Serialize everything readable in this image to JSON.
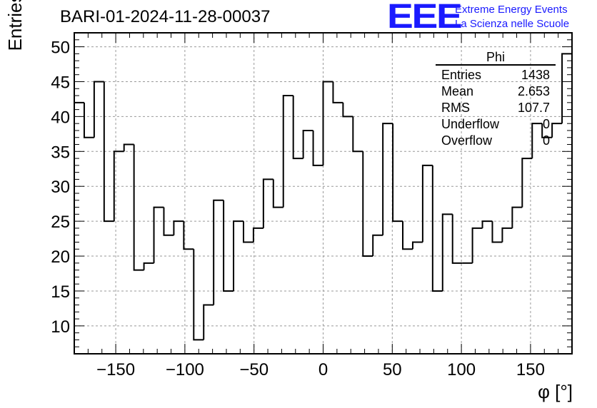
{
  "header": {
    "run_title": "BARI-01-2024-11-28-00037",
    "logo": "EEE",
    "logo_line1": "Extreme Energy Events",
    "logo_line2": "La Scienza nelle Scuole"
  },
  "stats": {
    "name": "Phi",
    "rows": [
      {
        "label": "Entries",
        "value": "1438"
      },
      {
        "label": "Mean",
        "value": "2.653"
      },
      {
        "label": "RMS",
        "value": "107.7"
      },
      {
        "label": "Underflow",
        "value": "0"
      },
      {
        "label": "Overflow",
        "value": "0"
      }
    ]
  },
  "chart_data": {
    "type": "bar",
    "style": "step-histogram",
    "title": "BARI-01-2024-11-28-00037",
    "xlabel": "φ [°]",
    "ylabel": "Entries/bin",
    "xlim": [
      -180,
      180
    ],
    "ylim": [
      6,
      52
    ],
    "bin_width": 7.2,
    "grid": true,
    "x_ticks": [
      -150,
      -100,
      -50,
      0,
      50,
      100,
      150
    ],
    "x_tick_labels": [
      "−150",
      "−100",
      "−50",
      "0",
      "50",
      "100",
      "150"
    ],
    "y_ticks": [
      10,
      15,
      20,
      25,
      30,
      35,
      40,
      45,
      50
    ],
    "values": [
      42,
      37,
      45,
      25,
      35,
      36,
      18,
      19,
      27,
      23,
      25,
      21,
      8,
      13,
      28,
      15,
      25,
      22,
      24,
      31,
      27,
      43,
      34,
      38,
      33,
      45,
      42,
      40,
      35,
      20,
      23,
      39,
      25,
      21,
      22,
      33,
      15,
      26,
      19,
      19,
      24,
      25,
      22,
      24,
      27,
      34,
      39,
      37,
      39,
      49
    ]
  }
}
